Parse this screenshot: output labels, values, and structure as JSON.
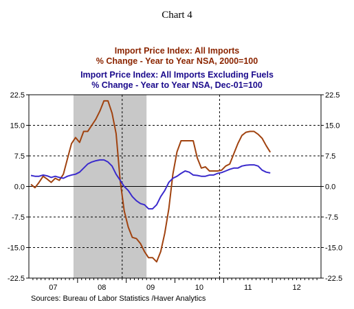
{
  "chart_data": {
    "type": "line",
    "title": "Chart 4",
    "legend": [
      {
        "line1": "Import Price Index: All Imports",
        "line2": "% Change - Year to Year   NSA, 2000=100",
        "color": "#8B2500"
      },
      {
        "line1": "Import Price Index: All Imports Excluding Fuels",
        "line2": "% Change - Year to Year   NSA, Dec-01=100",
        "color": "#1A0A8C"
      }
    ],
    "source": "Sources:  Bureau of Labor Statistics /Haver Analytics",
    "x_axis": {
      "type": "time",
      "start": "2007-01",
      "end": "2012-12",
      "year_labels": [
        "07",
        "08",
        "09",
        "10",
        "11",
        "12"
      ]
    },
    "y_axis": {
      "min": -22.5,
      "max": 22.5,
      "ticks": [
        "22.5",
        "15.0",
        "7.5",
        "0.0",
        "-7.5",
        "-15.0",
        "-22.5"
      ],
      "tick_values": [
        22.5,
        15,
        7.5,
        0,
        -7.5,
        -15,
        -22.5
      ],
      "grid": "dashed"
    },
    "recession_shading": {
      "start": "2007-12",
      "end": "2009-06",
      "color": "#c8c8c8"
    },
    "vertical_markers": [
      "2008-12",
      "2010-12"
    ],
    "series": [
      {
        "name": "Import Price Index: All Imports",
        "color": "#A0420F",
        "dates": [
          "2007-01",
          "2007-02",
          "2007-03",
          "2007-04",
          "2007-05",
          "2007-06",
          "2007-07",
          "2007-08",
          "2007-09",
          "2007-10",
          "2007-11",
          "2007-12",
          "2008-01",
          "2008-02",
          "2008-03",
          "2008-04",
          "2008-05",
          "2008-06",
          "2008-07",
          "2008-08",
          "2008-09",
          "2008-10",
          "2008-11",
          "2008-12",
          "2009-01",
          "2009-02",
          "2009-03",
          "2009-04",
          "2009-05",
          "2009-06",
          "2009-07",
          "2009-08",
          "2009-09",
          "2009-10",
          "2009-11",
          "2009-12",
          "2010-01",
          "2010-02",
          "2010-03",
          "2010-04",
          "2010-05",
          "2010-06",
          "2010-07",
          "2010-08",
          "2010-09",
          "2010-10",
          "2010-11",
          "2010-12",
          "2011-01",
          "2011-02",
          "2011-03",
          "2011-04",
          "2011-05",
          "2011-06",
          "2011-07",
          "2011-08",
          "2011-09",
          "2011-10",
          "2011-11",
          "2011-12"
        ],
        "values": [
          0.5,
          -0.3,
          1.0,
          2.5,
          1.8,
          1.0,
          2.0,
          1.5,
          3.0,
          6.8,
          10.5,
          12.0,
          10.8,
          13.5,
          13.5,
          15.0,
          16.5,
          18.5,
          21.0,
          21.0,
          18.0,
          13.0,
          1.5,
          -6.0,
          -10.0,
          -12.5,
          -12.8,
          -14.0,
          -16.0,
          -17.5,
          -17.5,
          -18.5,
          -16.0,
          -11.5,
          -5.5,
          3.0,
          8.5,
          11.2,
          11.2,
          11.2,
          11.2,
          7.0,
          4.5,
          4.8,
          3.8,
          3.8,
          3.8,
          4.0,
          5.0,
          5.5,
          8.0,
          10.5,
          12.5,
          13.3,
          13.5,
          13.5,
          12.8,
          11.8,
          10.0,
          8.4
        ]
      },
      {
        "name": "Import Price Index: All Imports Excluding Fuels",
        "color": "#3A2ACC",
        "dates": [
          "2007-01",
          "2007-02",
          "2007-03",
          "2007-04",
          "2007-05",
          "2007-06",
          "2007-07",
          "2007-08",
          "2007-09",
          "2007-10",
          "2007-11",
          "2007-12",
          "2008-01",
          "2008-02",
          "2008-03",
          "2008-04",
          "2008-05",
          "2008-06",
          "2008-07",
          "2008-08",
          "2008-09",
          "2008-10",
          "2008-11",
          "2008-12",
          "2009-01",
          "2009-02",
          "2009-03",
          "2009-04",
          "2009-05",
          "2009-06",
          "2009-07",
          "2009-08",
          "2009-09",
          "2009-10",
          "2009-11",
          "2009-12",
          "2010-01",
          "2010-02",
          "2010-03",
          "2010-04",
          "2010-05",
          "2010-06",
          "2010-07",
          "2010-08",
          "2010-09",
          "2010-10",
          "2010-11",
          "2010-12",
          "2011-01",
          "2011-02",
          "2011-03",
          "2011-04",
          "2011-05",
          "2011-06",
          "2011-07",
          "2011-08",
          "2011-09",
          "2011-10",
          "2011-11",
          "2011-12"
        ],
        "values": [
          2.7,
          2.5,
          2.5,
          2.8,
          2.6,
          2.2,
          2.5,
          2.2,
          2.0,
          2.5,
          2.8,
          3.0,
          3.5,
          4.5,
          5.5,
          6.0,
          6.3,
          6.5,
          6.5,
          6.0,
          5.0,
          3.0,
          1.5,
          0.0,
          -1.0,
          -2.5,
          -3.5,
          -4.2,
          -4.5,
          -5.5,
          -5.5,
          -4.5,
          -2.5,
          -1.0,
          1.0,
          2.0,
          2.5,
          3.2,
          3.8,
          3.5,
          2.8,
          2.7,
          2.5,
          2.5,
          2.8,
          2.8,
          3.2,
          3.4,
          3.8,
          4.2,
          4.5,
          4.5,
          5.0,
          5.2,
          5.3,
          5.3,
          5.0,
          4.0,
          3.5,
          3.3
        ]
      }
    ]
  }
}
